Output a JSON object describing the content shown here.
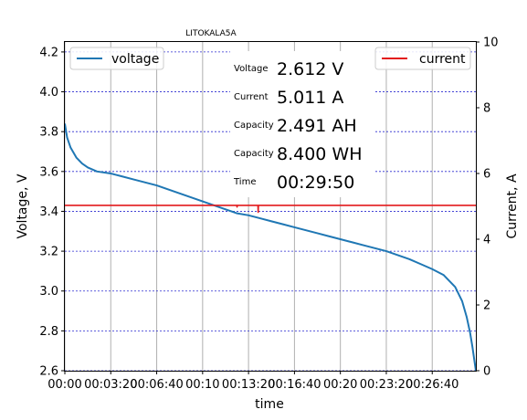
{
  "chart_data": {
    "type": "line",
    "title": "LITOKALA5A",
    "xlabel": "time",
    "ylabel_left": "Voltage, V",
    "ylabel_right": "Current, A",
    "x_unit": "seconds",
    "xlim": [
      0,
      1790
    ],
    "ylim_left": [
      2.6,
      4.25
    ],
    "ylim_right": [
      0,
      10
    ],
    "x_ticks": [
      0,
      200,
      400,
      600,
      800,
      1000,
      1200,
      1400,
      1600
    ],
    "x_tick_labels": [
      "00:00",
      "00:03:20",
      "00:06:40",
      "00:10",
      "00:13:20",
      "00:16:40",
      "00:20",
      "00:23:20",
      "00:26:40"
    ],
    "y_ticks_left": [
      2.6,
      2.8,
      3.0,
      3.2,
      3.4,
      3.6,
      3.8,
      4.0,
      4.2
    ],
    "y_tick_labels_left": [
      "2.6",
      "2.8",
      "3.0",
      "3.2",
      "3.4",
      "3.6",
      "3.8",
      "4.0",
      "4.2"
    ],
    "y_ticks_right": [
      0,
      2,
      4,
      6,
      8,
      10
    ],
    "y_tick_labels_right": [
      "0",
      "2",
      "4",
      "6",
      "8",
      "10"
    ],
    "grid": true,
    "series": [
      {
        "name": "voltage",
        "axis": "left",
        "color": "#1f77b4",
        "x": [
          0,
          10,
          25,
          50,
          75,
          100,
          140,
          200,
          250,
          300,
          350,
          400,
          450,
          500,
          550,
          600,
          650,
          700,
          750,
          800,
          850,
          900,
          950,
          1000,
          1050,
          1100,
          1150,
          1200,
          1250,
          1300,
          1350,
          1400,
          1450,
          1500,
          1550,
          1600,
          1650,
          1700,
          1730,
          1750,
          1765,
          1775,
          1785,
          1790
        ],
        "values": [
          3.84,
          3.77,
          3.72,
          3.67,
          3.64,
          3.62,
          3.6,
          3.59,
          3.575,
          3.56,
          3.545,
          3.53,
          3.51,
          3.49,
          3.47,
          3.45,
          3.43,
          3.41,
          3.39,
          3.38,
          3.365,
          3.35,
          3.335,
          3.32,
          3.305,
          3.29,
          3.275,
          3.26,
          3.245,
          3.23,
          3.215,
          3.2,
          3.18,
          3.16,
          3.135,
          3.11,
          3.08,
          3.02,
          2.95,
          2.87,
          2.79,
          2.72,
          2.64,
          2.6
        ]
      },
      {
        "name": "current",
        "axis": "right",
        "color": "#e31a1c",
        "x": [
          0,
          250,
          500,
          749,
          750,
          751,
          841,
          842,
          843,
          1000,
          1250,
          1500,
          1790
        ],
        "values": [
          5.03,
          5.03,
          5.03,
          5.03,
          4.98,
          5.03,
          5.03,
          4.82,
          5.03,
          5.03,
          5.03,
          5.03,
          5.03
        ]
      }
    ],
    "legend": [
      {
        "label": "voltage",
        "placement": "top-left"
      },
      {
        "label": "current",
        "placement": "top-right"
      }
    ]
  },
  "readout": {
    "voltage": {
      "label": "Voltage",
      "value": "2.612 V",
      "color": "#1b6b1b"
    },
    "current": {
      "label": "Current",
      "value": "5.011 A",
      "color": "#b80000"
    },
    "capacity_ah": {
      "label": "Capacity",
      "value": "2.491 AH",
      "color": "#000000"
    },
    "capacity_wh": {
      "label": "Capacity",
      "value": "8.400 WH",
      "color": "#000000"
    },
    "time": {
      "label": "Time",
      "value": "00:29:50",
      "color": "#000000"
    }
  }
}
